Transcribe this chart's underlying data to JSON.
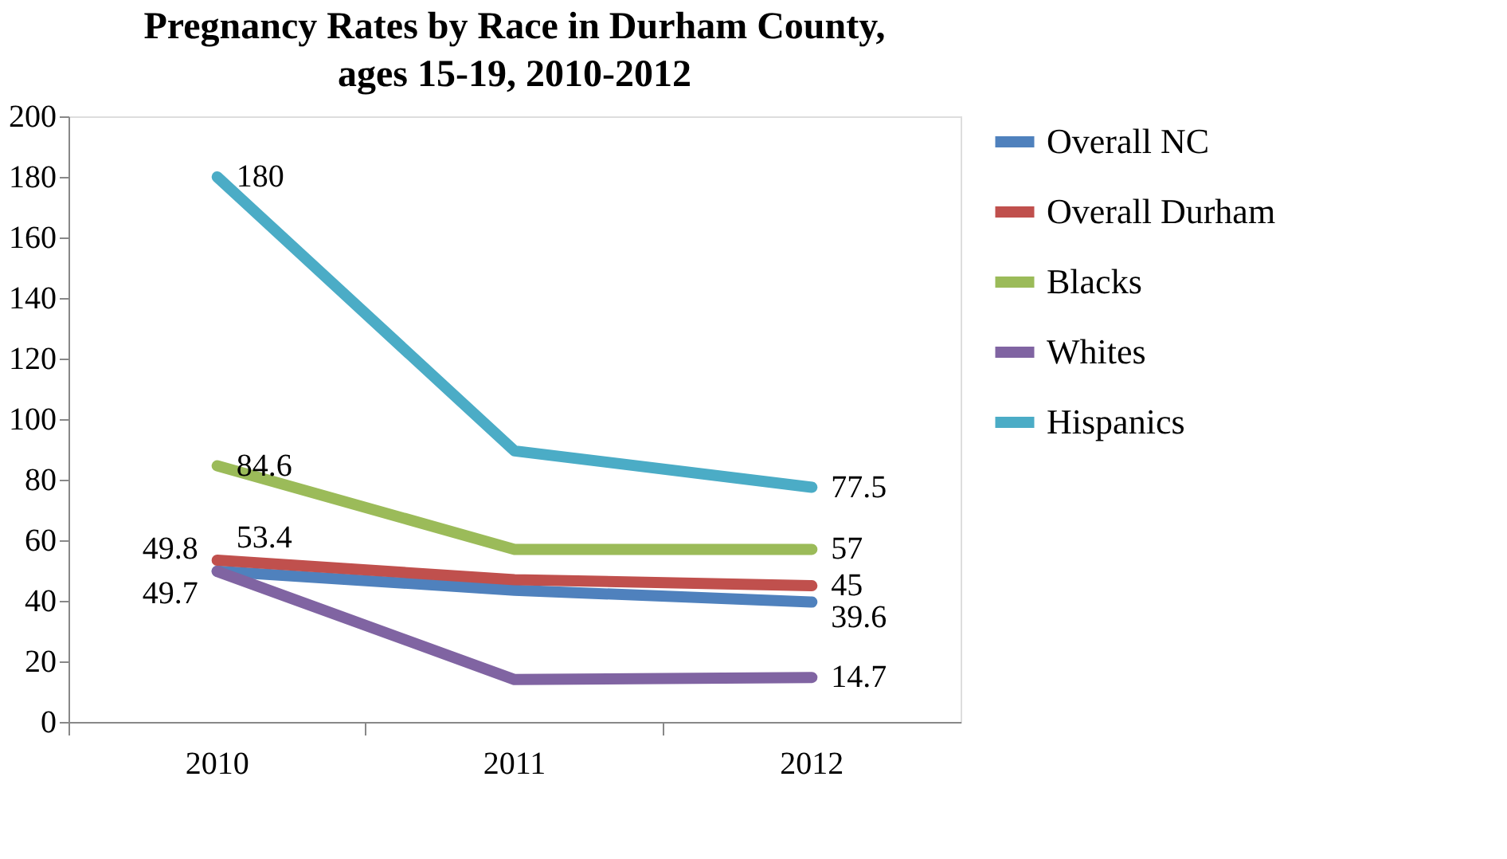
{
  "chart_data": {
    "type": "line",
    "title": "Pregnancy Rates by Race in Durham County, ages 15-19, 2010-2012",
    "categories": [
      "2010",
      "2011",
      "2012"
    ],
    "series": [
      {
        "name": "Overall NC",
        "color": "#4f81bd",
        "values": [
          49.8,
          43.5,
          39.6
        ],
        "value_labels": [
          "49.8",
          null,
          "39.6"
        ]
      },
      {
        "name": "Overall Durham",
        "color": "#c0504d",
        "values": [
          53.4,
          47,
          45
        ],
        "value_labels": [
          "53.4",
          null,
          "45"
        ]
      },
      {
        "name": "Blacks",
        "color": "#9bbb59",
        "values": [
          84.6,
          57,
          57
        ],
        "value_labels": [
          "84.6",
          null,
          "57"
        ]
      },
      {
        "name": "Whites",
        "color": "#8064a2",
        "values": [
          49.7,
          14,
          14.7
        ],
        "value_labels": [
          "49.7",
          null,
          "14.7"
        ]
      },
      {
        "name": "Hispanics",
        "color": "#4bacc6",
        "values": [
          180,
          89.5,
          77.5
        ],
        "value_labels": [
          "180",
          null,
          "77.5"
        ]
      }
    ],
    "ylim": [
      0,
      200
    ],
    "yticks": [
      0,
      20,
      40,
      60,
      80,
      100,
      120,
      140,
      160,
      180,
      200
    ],
    "grid": false,
    "legend": "right",
    "marker": "none",
    "line_style": "solid"
  }
}
